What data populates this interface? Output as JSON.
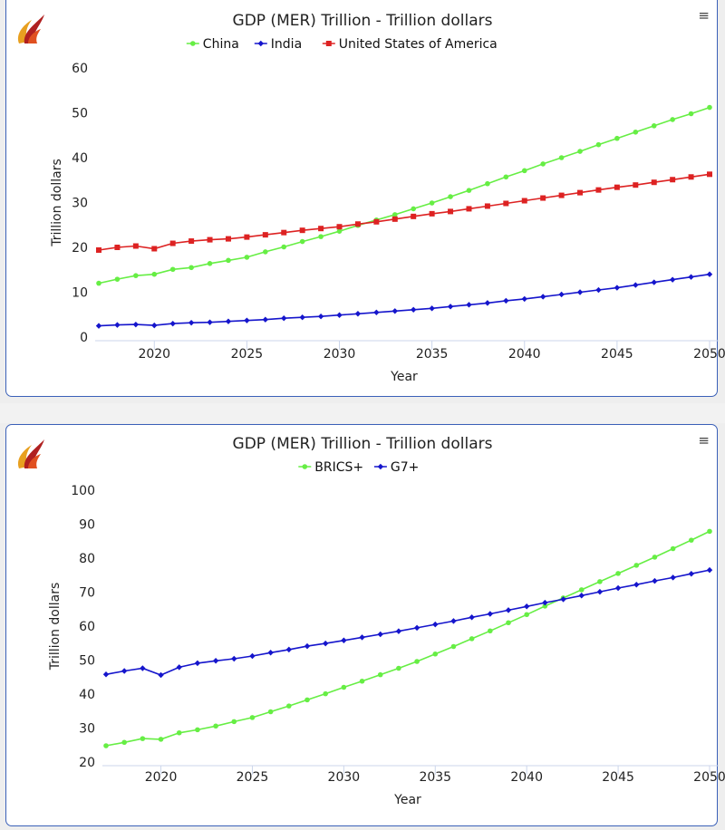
{
  "chart_data": [
    {
      "type": "line",
      "title": "GDP (MER) Trillion - Trillion dollars",
      "xlabel": "Year",
      "ylabel": "Trillion dollars",
      "xlim": [
        2017,
        2050
      ],
      "ylim": [
        0,
        60
      ],
      "yticks": [
        0,
        10,
        20,
        30,
        40,
        50,
        60
      ],
      "xticks": [
        2020,
        2025,
        2030,
        2035,
        2040,
        2045,
        2050
      ],
      "legend": "top-center",
      "x": [
        2017,
        2018,
        2019,
        2020,
        2021,
        2022,
        2023,
        2024,
        2025,
        2026,
        2027,
        2028,
        2029,
        2030,
        2031,
        2032,
        2033,
        2034,
        2035,
        2036,
        2037,
        2038,
        2039,
        2040,
        2041,
        2042,
        2043,
        2044,
        2045,
        2046,
        2047,
        2048,
        2049,
        2050
      ],
      "series": [
        {
          "name": "China",
          "color": "#66ee44",
          "marker": "circle",
          "values": [
            12.0,
            12.9,
            13.7,
            14.0,
            15.1,
            15.5,
            16.4,
            17.1,
            17.8,
            19.0,
            20.1,
            21.3,
            22.4,
            23.6,
            24.9,
            26.1,
            27.3,
            28.6,
            29.9,
            31.3,
            32.7,
            34.2,
            35.7,
            37.1,
            38.6,
            40.0,
            41.4,
            42.9,
            44.3,
            45.7,
            47.1,
            48.5,
            49.8,
            51.2
          ]
        },
        {
          "name": "India",
          "color": "#1515cc",
          "marker": "diamond",
          "values": [
            2.5,
            2.7,
            2.8,
            2.6,
            3.0,
            3.2,
            3.3,
            3.5,
            3.7,
            3.9,
            4.2,
            4.4,
            4.6,
            4.9,
            5.2,
            5.5,
            5.8,
            6.1,
            6.4,
            6.8,
            7.2,
            7.6,
            8.1,
            8.5,
            9.0,
            9.5,
            10.0,
            10.5,
            11.0,
            11.6,
            12.2,
            12.8,
            13.4,
            14.0
          ]
        },
        {
          "name": "United States of America",
          "color": "#dd2222",
          "marker": "square",
          "values": [
            19.4,
            20.0,
            20.3,
            19.7,
            20.9,
            21.4,
            21.7,
            21.9,
            22.3,
            22.8,
            23.3,
            23.8,
            24.2,
            24.6,
            25.2,
            25.7,
            26.3,
            26.9,
            27.5,
            28.0,
            28.6,
            29.2,
            29.8,
            30.4,
            31.0,
            31.6,
            32.2,
            32.8,
            33.4,
            33.9,
            34.5,
            35.1,
            35.7,
            36.3
          ]
        }
      ]
    },
    {
      "type": "line",
      "title": "GDP (MER) Trillion - Trillion dollars",
      "xlabel": "Year",
      "ylabel": "Trillion dollars",
      "xlim": [
        2017,
        2050
      ],
      "ylim": [
        20,
        100
      ],
      "yticks": [
        20,
        30,
        40,
        50,
        60,
        70,
        80,
        90,
        100
      ],
      "xticks": [
        2020,
        2025,
        2030,
        2035,
        2040,
        2045,
        2050
      ],
      "legend": "top-center",
      "x": [
        2017,
        2018,
        2019,
        2020,
        2021,
        2022,
        2023,
        2024,
        2025,
        2026,
        2027,
        2028,
        2029,
        2030,
        2031,
        2032,
        2033,
        2034,
        2035,
        2036,
        2037,
        2038,
        2039,
        2040,
        2041,
        2042,
        2043,
        2044,
        2045,
        2046,
        2047,
        2048,
        2049,
        2050
      ],
      "series": [
        {
          "name": "BRICS+",
          "color": "#66ee44",
          "marker": "circle",
          "values": [
            24.8,
            25.8,
            26.9,
            26.7,
            28.6,
            29.5,
            30.6,
            31.9,
            33.1,
            34.8,
            36.5,
            38.3,
            40.1,
            42.0,
            43.8,
            45.7,
            47.6,
            49.6,
            51.8,
            54.0,
            56.3,
            58.6,
            61.0,
            63.4,
            65.9,
            68.3,
            70.7,
            73.1,
            75.5,
            77.9,
            80.3,
            82.8,
            85.3,
            87.9
          ]
        },
        {
          "name": "G7+",
          "color": "#1515cc",
          "marker": "diamond",
          "values": [
            45.8,
            46.8,
            47.6,
            45.6,
            47.9,
            49.1,
            49.8,
            50.4,
            51.2,
            52.2,
            53.1,
            54.1,
            54.9,
            55.8,
            56.7,
            57.6,
            58.5,
            59.5,
            60.5,
            61.5,
            62.6,
            63.6,
            64.7,
            65.8,
            66.9,
            67.9,
            69.0,
            70.1,
            71.2,
            72.2,
            73.3,
            74.3,
            75.4,
            76.5
          ]
        }
      ]
    }
  ],
  "icons": {
    "logo": "flame-logo-icon",
    "menu": "hamburger-menu-icon"
  },
  "menu_glyph": "≡"
}
